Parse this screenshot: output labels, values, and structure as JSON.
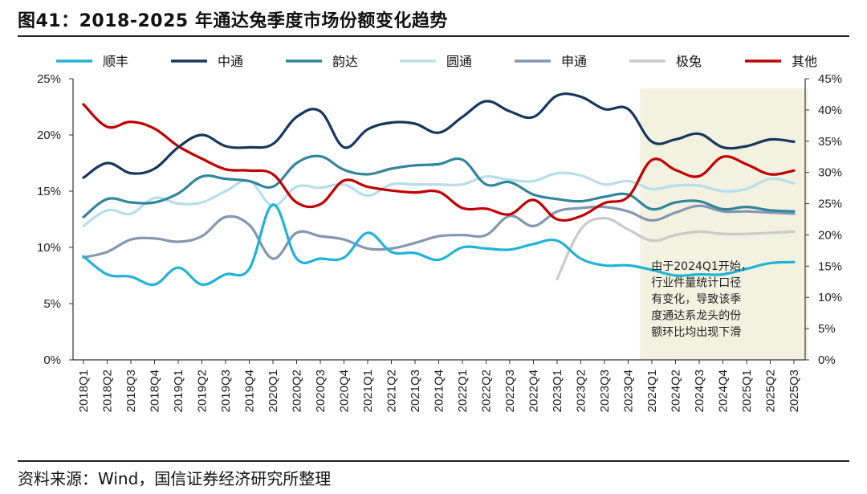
{
  "figure_title": "图41：2018-2025 年通达兔季度市场份额变化趋势",
  "source": "资料来源：Wind，国信证券经济研究所整理",
  "chart_data": {
    "type": "line",
    "title": "2018-2025 年通达兔季度市场份额变化趋势",
    "categories": [
      "2018Q1",
      "2018Q2",
      "2018Q3",
      "2018Q4",
      "2019Q1",
      "2019Q2",
      "2019Q3",
      "2019Q4",
      "2020Q1",
      "2020Q2",
      "2020Q3",
      "2020Q4",
      "2021Q1",
      "2021Q2",
      "2021Q3",
      "2021Q4",
      "2022Q1",
      "2022Q2",
      "2022Q3",
      "2022Q4",
      "2023Q1",
      "2023Q2",
      "2023Q3",
      "2023Q4",
      "2024Q1",
      "2024Q2",
      "2024Q3",
      "2024Q4",
      "2025Q1",
      "2025Q2",
      "2025Q3"
    ],
    "y_left": {
      "ticks": [
        "0%",
        "5%",
        "10%",
        "15%",
        "20%",
        "25%"
      ],
      "ylim": [
        0,
        25
      ]
    },
    "y_right": {
      "ticks": [
        "0%",
        "5%",
        "10%",
        "15%",
        "20%",
        "25%",
        "30%",
        "35%",
        "40%",
        "45%"
      ],
      "ylim": [
        0,
        45
      ]
    },
    "series": [
      {
        "name": "顺丰",
        "color": "#1fb3d6",
        "axis": "left",
        "values": [
          9.2,
          7.6,
          7.4,
          6.7,
          8.2,
          6.7,
          7.6,
          8.1,
          13.8,
          9.0,
          9.0,
          9.1,
          11.3,
          9.6,
          9.5,
          8.9,
          10.0,
          9.9,
          9.8,
          10.3,
          10.6,
          9.0,
          8.4,
          8.4,
          8.0,
          7.5,
          7.6,
          7.6,
          8.1,
          8.6,
          8.7
        ]
      },
      {
        "name": "中通",
        "color": "#17365d",
        "axis": "left",
        "values": [
          16.2,
          17.5,
          16.6,
          17.0,
          18.9,
          20.0,
          19.0,
          18.9,
          19.2,
          21.6,
          22.1,
          18.9,
          20.5,
          21.1,
          21.0,
          20.2,
          21.6,
          23.0,
          22.1,
          21.6,
          23.5,
          23.4,
          22.3,
          22.3,
          19.4,
          19.6,
          20.1,
          18.9,
          19.0,
          19.6,
          19.4
        ]
      },
      {
        "name": "韵达",
        "color": "#31859c",
        "axis": "left",
        "values": [
          12.7,
          14.3,
          14.0,
          14.0,
          14.8,
          16.3,
          16.1,
          15.9,
          15.4,
          17.5,
          18.1,
          16.9,
          16.5,
          17.0,
          17.3,
          17.4,
          17.8,
          15.6,
          15.8,
          14.7,
          14.3,
          14.1,
          14.5,
          14.7,
          13.4,
          14.0,
          14.1,
          13.4,
          13.6,
          13.3,
          13.2
        ]
      },
      {
        "name": "圆通",
        "color": "#b7dde8",
        "axis": "left",
        "values": [
          11.9,
          13.3,
          13.0,
          14.4,
          13.9,
          14.0,
          15.0,
          15.9,
          13.7,
          15.4,
          15.3,
          15.6,
          14.6,
          15.6,
          15.6,
          15.6,
          15.6,
          16.3,
          16.0,
          15.9,
          16.6,
          16.4,
          15.6,
          15.9,
          15.2,
          15.5,
          15.5,
          15.0,
          15.2,
          16.1,
          15.7
        ]
      },
      {
        "name": "申通",
        "color": "#8496b0",
        "axis": "left",
        "values": [
          9.1,
          9.6,
          10.7,
          10.8,
          10.5,
          11.0,
          12.7,
          12.0,
          9.0,
          11.3,
          11.0,
          10.7,
          9.9,
          9.9,
          10.4,
          11.0,
          11.1,
          11.1,
          12.8,
          11.9,
          13.2,
          13.5,
          13.6,
          13.2,
          12.4,
          13.1,
          13.7,
          13.2,
          13.2,
          13.1,
          13.0
        ]
      },
      {
        "name": "极兔",
        "color": "#c9c9c9",
        "axis": "left",
        "values": [
          null,
          null,
          null,
          null,
          null,
          null,
          null,
          null,
          null,
          null,
          null,
          null,
          null,
          null,
          null,
          null,
          null,
          null,
          null,
          null,
          7.2,
          11.6,
          12.6,
          11.6,
          10.6,
          11.1,
          11.4,
          11.2,
          11.2,
          11.3,
          11.4
        ]
      },
      {
        "name": "其他",
        "color": "#c00000",
        "axis": "right",
        "values": [
          40.9,
          37.3,
          38.1,
          37.0,
          34.2,
          32.2,
          30.5,
          30.3,
          29.7,
          25.2,
          24.9,
          28.7,
          27.7,
          27.1,
          26.8,
          26.9,
          24.3,
          24.2,
          23.3,
          25.6,
          22.5,
          23.0,
          25.1,
          26.1,
          32.0,
          30.4,
          29.4,
          32.5,
          31.3,
          29.7,
          30.3
        ]
      }
    ],
    "annotation": {
      "lines": [
        "由于2024Q1开始，",
        "行业件量统计口径",
        "有变化，导致该季",
        "度通达系龙头的份",
        "额环比均出现下滑"
      ],
      "shaded_from": "2024Q1",
      "shaded_to": "2025Q3",
      "shade_color": "#f3f1e0"
    }
  }
}
